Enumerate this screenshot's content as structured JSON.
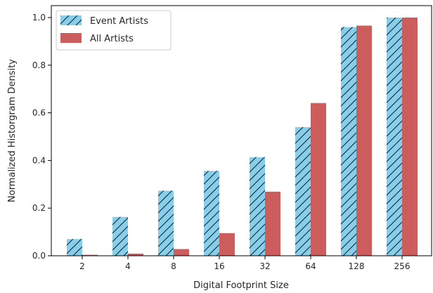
{
  "chart_data": {
    "type": "bar",
    "title": "",
    "xlabel": "Digital Footprint Size",
    "ylabel": "Normalized Historgram Density",
    "categories": [
      "2",
      "4",
      "8",
      "16",
      "32",
      "64",
      "128",
      "256"
    ],
    "series": [
      {
        "name": "Event Artists",
        "values": [
          0.07,
          0.163,
          0.273,
          0.356,
          0.414,
          0.54,
          0.96,
          1.0
        ],
        "color": "#87ceeb",
        "hatch": "//"
      },
      {
        "name": "All Artists",
        "values": [
          0.004,
          0.009,
          0.028,
          0.095,
          0.269,
          0.641,
          0.966,
          1.0
        ],
        "color": "#cd5c5c",
        "hatch": ""
      }
    ],
    "ylim": [
      0,
      1.05
    ],
    "yticks": [
      0.0,
      0.2,
      0.4,
      0.6,
      0.8,
      1.0
    ],
    "ytick_labels": [
      "0.0",
      "0.2",
      "0.4",
      "0.6",
      "0.8",
      "1.0"
    ],
    "grid": false,
    "legend_position": "top-left"
  }
}
